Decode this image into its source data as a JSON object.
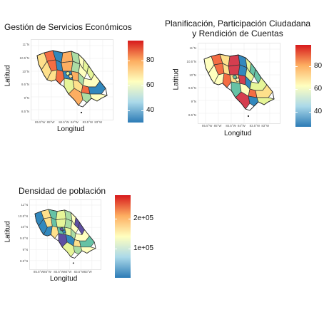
{
  "panels": [
    {
      "id": "gse",
      "title_lines": [
        "Gestión de Servicios Económicos"
      ],
      "xlabel": "Longitud",
      "ylabel": "Latitud",
      "y_ticks": [
        "11°N",
        "10.5°N",
        "10°N",
        "9.5°N",
        "9°N",
        "8.5°N"
      ],
      "x_ticks": [
        "85.5°W",
        "85°W",
        "84.5°W",
        "84°W",
        "83.5°W",
        "83°W"
      ],
      "legend_ticks": [
        "80",
        "60",
        "40"
      ],
      "legend_range": [
        30,
        96
      ],
      "legend_values": [
        80,
        60,
        40
      ]
    },
    {
      "id": "ppc",
      "title_lines": [
        "Planificación, Participación Ciudadana",
        "y Rendición de Cuentas"
      ],
      "xlabel": "Longitud",
      "ylabel": "Latitud",
      "y_ticks": [
        "11°N",
        "10.5°N",
        "10°N",
        "9.5°N",
        "9°N",
        "8.5°N"
      ],
      "x_ticks": [
        "85.5°W",
        "85°W",
        "84.5°W",
        "84°W",
        "83.5°W",
        "83°W"
      ],
      "legend_ticks": [
        "80",
        "60",
        "40"
      ],
      "legend_range": [
        27,
        99
      ],
      "legend_values": [
        80,
        60,
        40
      ]
    },
    {
      "id": "dens",
      "title_lines": [
        "Densidad de población"
      ],
      "xlabel": "Longitud",
      "ylabel": "Latitud",
      "y_ticks": [
        "11°N",
        "10.5°N",
        "10°N",
        "9.5°N",
        "9°N",
        "8.5°N"
      ],
      "x_ticks": [
        "85.5°W",
        "85°W",
        "84.5°W",
        "84°W",
        "83.5°W",
        "83°W"
      ],
      "legend_ticks": [
        "2e+05",
        "1e+05"
      ],
      "legend_range": [
        0,
        280000
      ],
      "legend_values": [
        200000,
        100000
      ]
    }
  ],
  "palette": [
    "#2c7bb6",
    "#abd9e9",
    "#ffffbf",
    "#fdae61",
    "#d7191c"
  ],
  "fill_colors": {
    "gse": [
      "#fee08b",
      "#ffffbf",
      "#fdae61",
      "#f46d43",
      "#e6f598",
      "#abdda4",
      "#3288bd"
    ],
    "ppc": [
      "#fee08b",
      "#ffffbf",
      "#e6f598",
      "#d53e4f",
      "#f46d43",
      "#66c2a5",
      "#3288bd"
    ],
    "dens": [
      "#abdda4",
      "#66c2a5",
      "#3288bd",
      "#ffffbf",
      "#e6f598",
      "#fee08b",
      "#5e4fa2"
    ]
  }
}
